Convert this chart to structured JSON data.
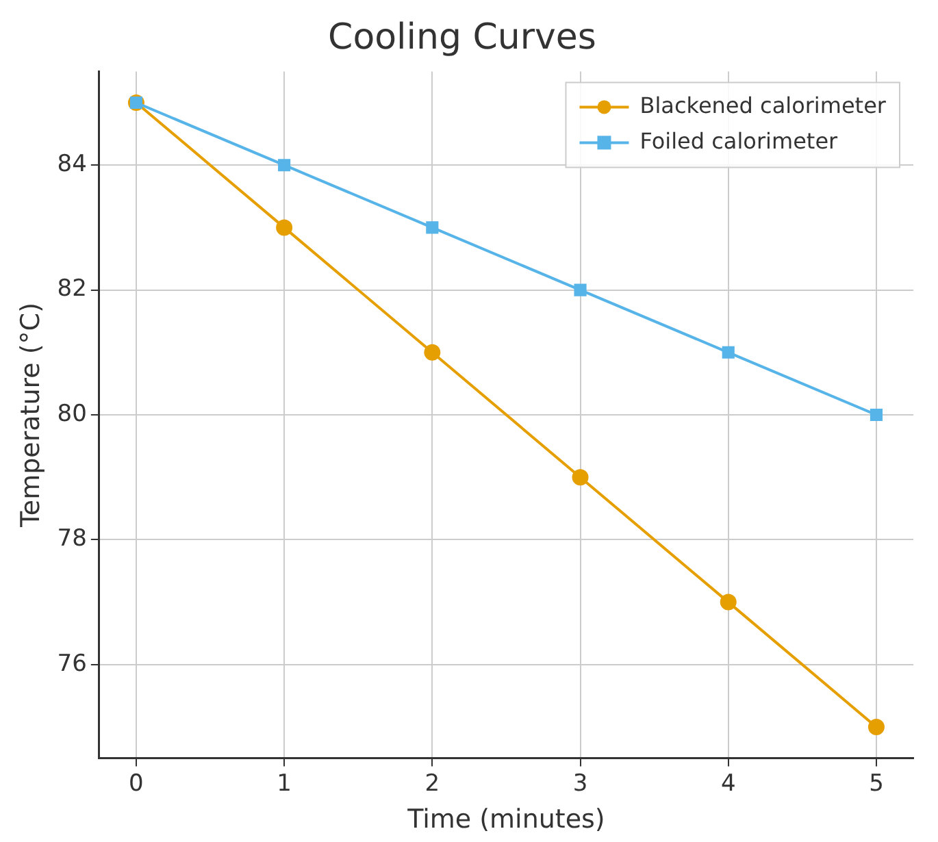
{
  "chart_data": {
    "type": "line",
    "title": "Cooling Curves",
    "xlabel": "Time (minutes)",
    "ylabel": "Temperature (°C)",
    "x": [
      0,
      1,
      2,
      3,
      4,
      5
    ],
    "series": [
      {
        "name": "Blackened calorimeter",
        "color": "#e69f00",
        "marker": "circle",
        "values": [
          85,
          83,
          81,
          79,
          77,
          75
        ]
      },
      {
        "name": "Foiled calorimeter",
        "color": "#56b4e9",
        "marker": "square",
        "values": [
          85,
          84,
          83,
          82,
          81,
          80
        ]
      }
    ],
    "xlim": [
      -0.25,
      5.25
    ],
    "xticks": [
      0,
      1,
      2,
      3,
      4,
      5
    ],
    "ylim": [
      74.5,
      85.5
    ],
    "yticks": [
      76,
      78,
      80,
      82,
      84
    ],
    "grid": true,
    "legend": "top right",
    "line_style": "solid"
  }
}
